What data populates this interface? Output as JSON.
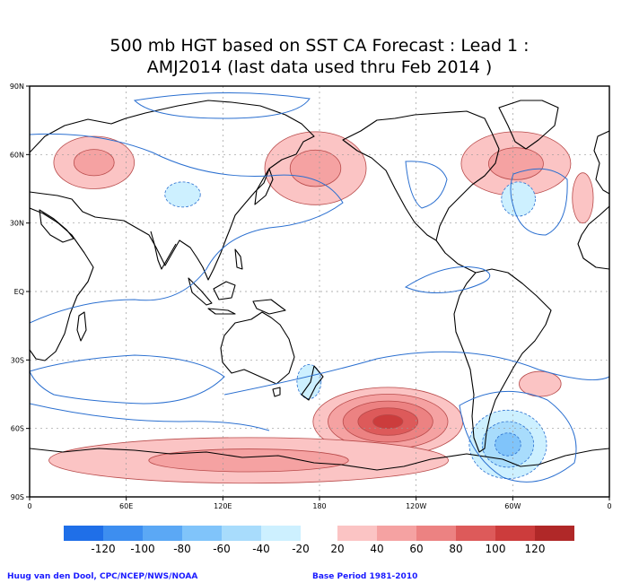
{
  "title_line1": "500 mb HGT based on SST CA Forecast : Lead 1 :",
  "title_line2": "AMJ2014 (last data used thru Feb 2014 )",
  "credit": "Huug van den Dool, CPC/NCEP/NWS/NOAA",
  "base_period": "Base Period 1981-2010",
  "map": {
    "projection": "equirectangular",
    "lon_range": [
      0,
      360
    ],
    "lat_range": [
      -90,
      90
    ],
    "lat_labels": [
      {
        "lat": 90,
        "text": "90N"
      },
      {
        "lat": 60,
        "text": "60N"
      },
      {
        "lat": 30,
        "text": "30N"
      },
      {
        "lat": 0,
        "text": "EQ"
      },
      {
        "lat": -30,
        "text": "30S"
      },
      {
        "lat": -60,
        "text": "60S"
      },
      {
        "lat": -90,
        "text": "90S"
      }
    ],
    "lon_labels": [
      {
        "lon": 0,
        "text": "0"
      },
      {
        "lon": 60,
        "text": "60E"
      },
      {
        "lon": 120,
        "text": "120E"
      },
      {
        "lon": 180,
        "text": "180"
      },
      {
        "lon": 240,
        "text": "120W"
      },
      {
        "lon": 300,
        "text": "60W"
      },
      {
        "lon": 360,
        "text": "0"
      }
    ],
    "grid_lines": true
  },
  "legend": {
    "negative": {
      "colors": [
        "#1f6fe8",
        "#3d8ef0",
        "#5ba8f5",
        "#80c4fa",
        "#a8dcfc",
        "#cdf0ff"
      ],
      "labels": [
        "-120",
        "-100",
        "-80",
        "-60",
        "-40",
        "-20"
      ]
    },
    "positive": {
      "colors": [
        "#fbc4c4",
        "#f5a2a2",
        "#ec8282",
        "#dd5a5a",
        "#cc3c3c",
        "#b02828"
      ],
      "labels": [
        "20",
        "40",
        "60",
        "80",
        "100",
        "120"
      ]
    }
  },
  "anomalies": [
    {
      "name": "central-asia-high",
      "sign": "positive",
      "peak": 40,
      "lon": [
        15,
        65
      ],
      "lat": [
        45,
        68
      ]
    },
    {
      "name": "siberia-low",
      "sign": "negative",
      "peak": -20,
      "lon": [
        84,
        106
      ],
      "lat": [
        37,
        48
      ]
    },
    {
      "name": "bering-high",
      "sign": "positive",
      "peak": 40,
      "lon": [
        146,
        209
      ],
      "lat": [
        38,
        70
      ]
    },
    {
      "name": "north-atlantic-europe-high",
      "sign": "positive",
      "peak": 40,
      "lon": [
        268,
        336
      ],
      "lat": [
        42,
        70
      ]
    },
    {
      "name": "north-atlantic-low",
      "sign": "negative",
      "peak": -20,
      "lon": [
        293,
        314
      ],
      "lat": [
        33,
        48
      ]
    },
    {
      "name": "iberia-high",
      "sign": "positive",
      "peak": 20,
      "lon": [
        337,
        350
      ],
      "lat": [
        30,
        52
      ]
    },
    {
      "name": "tasman-low",
      "sign": "negative",
      "peak": -20,
      "lon": [
        166,
        181
      ],
      "lat": [
        -47,
        -32
      ]
    },
    {
      "name": "south-pacific-high",
      "sign": "positive",
      "peak": 100,
      "lon": [
        176,
        269
      ],
      "lat": [
        -72,
        -42
      ]
    },
    {
      "name": "southern-ocean-high",
      "sign": "positive",
      "peak": 40,
      "lon": [
        12,
        260
      ],
      "lat": [
        -84,
        -64
      ]
    },
    {
      "name": "south-america-low",
      "sign": "negative",
      "peak": -60,
      "lon": [
        273,
        321
      ],
      "lat": [
        -82,
        -52
      ]
    },
    {
      "name": "south-atlantic-high",
      "sign": "positive",
      "peak": 20,
      "lon": [
        304,
        330
      ],
      "lat": [
        -46,
        -35
      ]
    }
  ]
}
